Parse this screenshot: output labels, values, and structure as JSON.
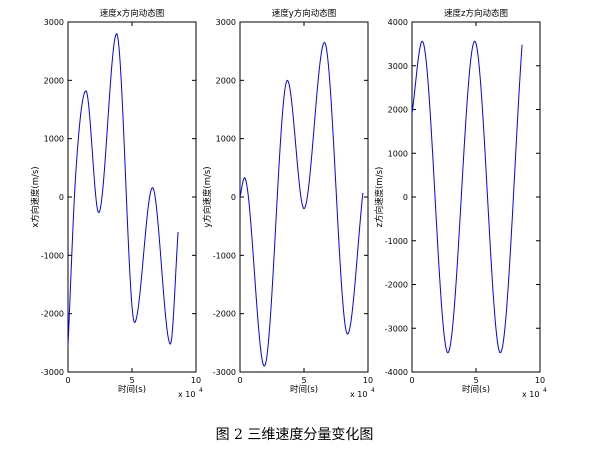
{
  "caption": "图 2  三维速度分量变化图",
  "colors": {
    "line": "#0000ff",
    "axis": "#000000"
  },
  "chart_data": [
    {
      "type": "line",
      "title": "速度x方向动态图",
      "xlabel": "时间(s)",
      "ylabel": "x方向速度(m/s)",
      "x_exponent_label": "x 10",
      "x_exponent": "4",
      "xlim": [
        0,
        10
      ],
      "ylim": [
        -3000,
        3000
      ],
      "xticks": [
        0,
        5,
        10
      ],
      "yticks": [
        -3000,
        -2000,
        -1000,
        0,
        1000,
        2000,
        3000
      ],
      "series": [
        {
          "x": [
            0.0,
            0.6,
            1.4,
            2.4,
            3.8,
            5.2,
            6.6,
            8.0,
            8.6
          ],
          "y": [
            -2550,
            380,
            1820,
            -270,
            2800,
            -2150,
            160,
            -2520,
            -600
          ]
        }
      ]
    },
    {
      "type": "line",
      "title": "速度y方向动态图",
      "xlabel": "时间(s)",
      "ylabel": "y方向速度(m/s)",
      "x_exponent_label": "x 10",
      "x_exponent": "4",
      "xlim": [
        0,
        10
      ],
      "ylim": [
        -3000,
        3000
      ],
      "xticks": [
        0,
        5,
        10
      ],
      "yticks": [
        -3000,
        -2000,
        -1000,
        0,
        1000,
        2000,
        3000
      ],
      "series": [
        {
          "x": [
            0.0,
            0.35,
            1.9,
            3.7,
            5.0,
            6.6,
            8.4,
            9.6
          ],
          "y": [
            0,
            330,
            -2900,
            2000,
            -200,
            2650,
            -2350,
            70
          ]
        }
      ]
    },
    {
      "type": "line",
      "title": "速度z方向动态图",
      "xlabel": "时间(s)",
      "ylabel": "z方向速度(m/s)",
      "x_exponent_label": "x 10",
      "x_exponent": "4",
      "xlim": [
        0,
        10
      ],
      "ylim": [
        -4000,
        4000
      ],
      "xticks": [
        0,
        5,
        10
      ],
      "yticks": [
        -4000,
        -3000,
        -2000,
        -1000,
        0,
        1000,
        2000,
        3000,
        4000
      ],
      "series": [
        {
          "x": [
            0.0,
            0.8,
            2.8,
            4.9,
            6.9,
            8.6
          ],
          "y": [
            1900,
            3560,
            -3560,
            3560,
            -3560,
            3480
          ]
        }
      ]
    }
  ]
}
